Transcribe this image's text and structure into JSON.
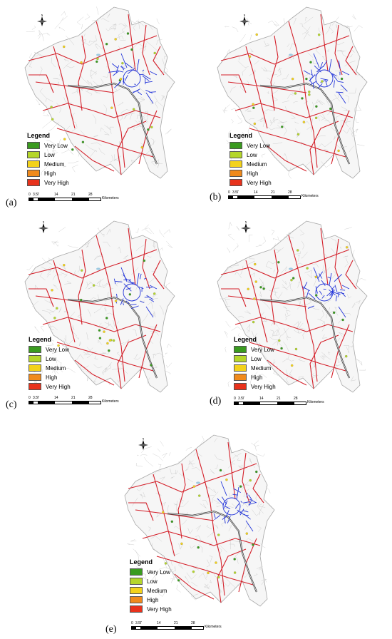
{
  "legend": {
    "title": "Legend",
    "classes": [
      {
        "label": "Very Low",
        "color": "#3a9b1f"
      },
      {
        "label": "Low",
        "color": "#b5d62b"
      },
      {
        "label": "Medium",
        "color": "#f3d21b"
      },
      {
        "label": "High",
        "color": "#f08a1c"
      },
      {
        "label": "Very High",
        "color": "#e8321c"
      }
    ]
  },
  "scale": {
    "ticks": [
      "0",
      "3.5",
      "7",
      "14",
      "21",
      "28"
    ],
    "unit": "Kilometers"
  },
  "north_label": "N",
  "colors": {
    "major_road": "#d4202a",
    "urban_road": "#2436d9",
    "minor_road": "#bdbdbd",
    "highway": "#3a3a3a"
  },
  "panels": [
    {
      "label": "(a)"
    },
    {
      "label": "(b)"
    },
    {
      "label": "(c)"
    },
    {
      "label": "(d)"
    },
    {
      "label": "(e)"
    }
  ]
}
